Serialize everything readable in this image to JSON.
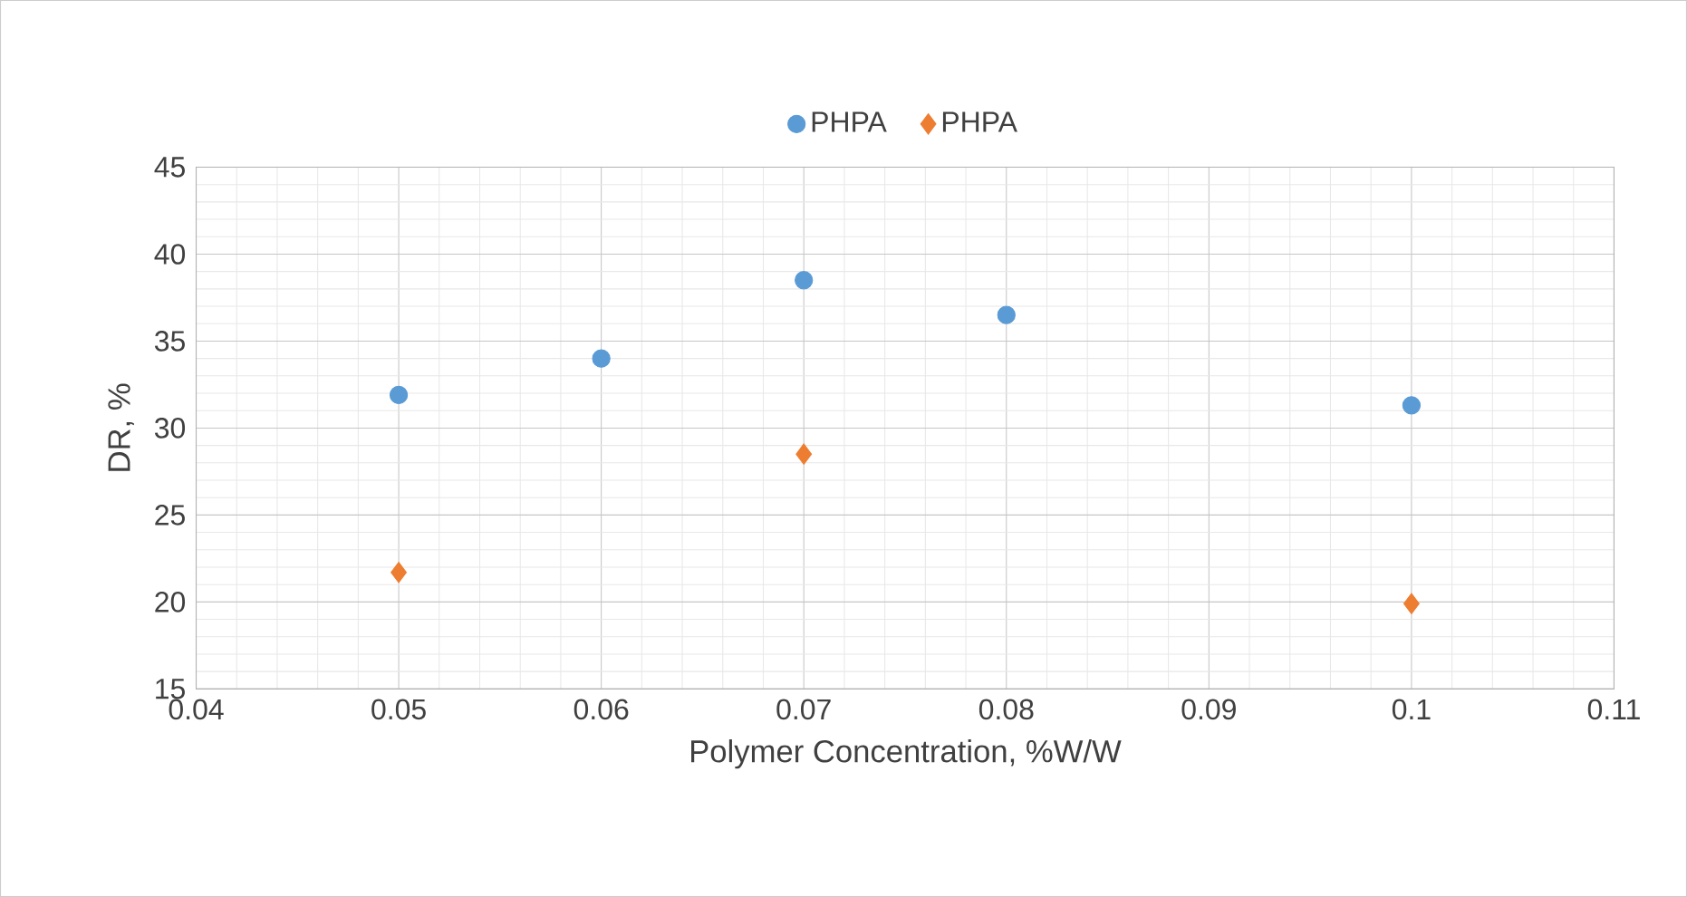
{
  "chart_data": {
    "type": "scatter",
    "xlabel": "Polymer Concentration, %W/W",
    "ylabel": "DR, %",
    "series": [
      {
        "name": "PHPA",
        "color": "#5b9bd5",
        "marker": "circle",
        "x": [
          0.05,
          0.06,
          0.07,
          0.08,
          0.1
        ],
        "values": [
          31.9,
          34.0,
          38.5,
          36.5,
          31.3
        ]
      },
      {
        "name": "PHPA",
        "color": "#ed7d31",
        "marker": "diamond",
        "x": [
          0.05,
          0.07,
          0.1
        ],
        "values": [
          21.7,
          28.5,
          19.9
        ]
      }
    ],
    "xlim": [
      0.04,
      0.11
    ],
    "xticks": [
      0.04,
      0.05,
      0.06,
      0.07,
      0.08,
      0.09,
      0.1,
      0.11
    ],
    "ylim": [
      15,
      45
    ],
    "yticks": [
      15,
      20,
      25,
      30,
      35,
      40,
      45
    ],
    "grid": true,
    "legend": "top"
  }
}
